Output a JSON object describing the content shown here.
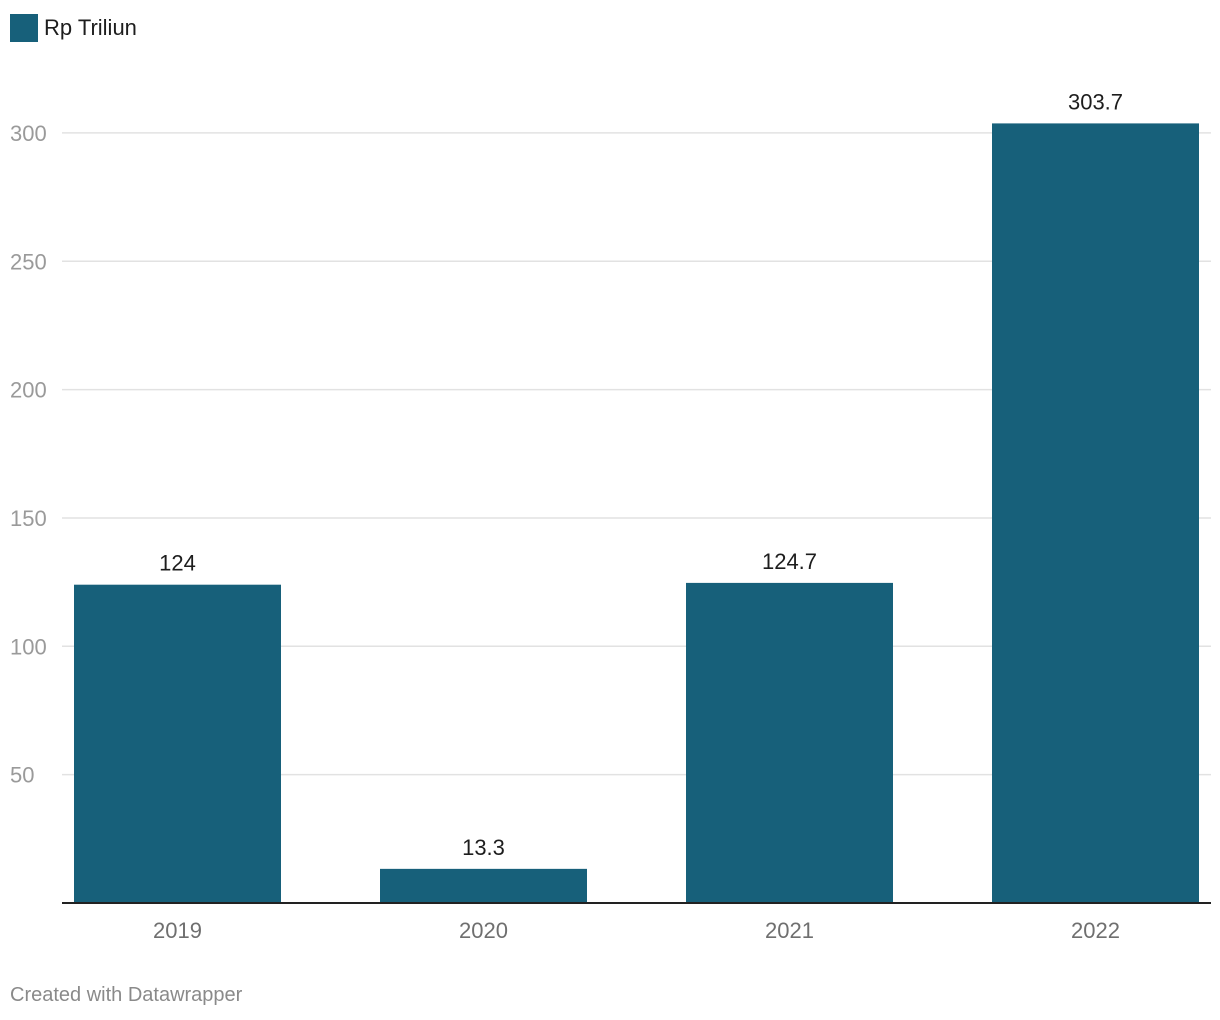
{
  "chart_data": {
    "type": "bar",
    "categories": [
      "2019",
      "2020",
      "2021",
      "2022"
    ],
    "series": [
      {
        "name": "Rp Triliun",
        "values": [
          124,
          13.3,
          124.7,
          303.7
        ],
        "color": "#17607a"
      }
    ],
    "data_labels": [
      "124",
      "13.3",
      "124.7",
      "303.7"
    ],
    "y_ticks": [
      50,
      100,
      150,
      200,
      250,
      300
    ],
    "ylim": [
      0,
      300
    ],
    "grid": true,
    "legend_position": "top-left",
    "title": "",
    "xlabel": "",
    "ylabel": ""
  },
  "legend": {
    "label": "Rp Triliun",
    "color": "#17607a"
  },
  "footer": {
    "credit": "Created with Datawrapper"
  }
}
